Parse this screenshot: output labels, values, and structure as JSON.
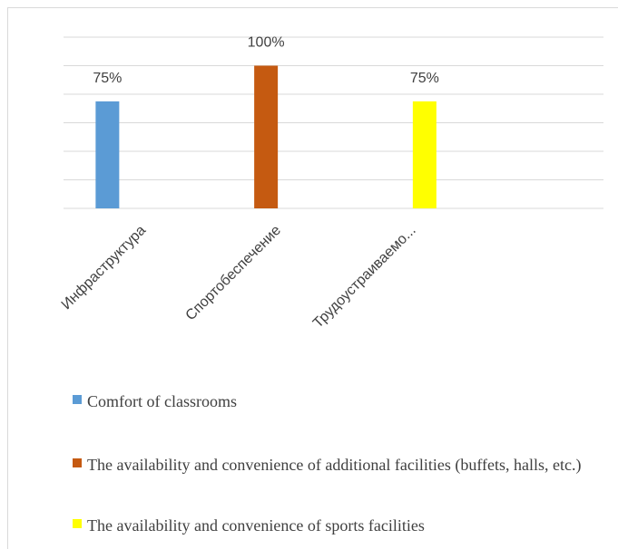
{
  "chart_data": {
    "type": "bar",
    "categories": [
      "Инфраструктура",
      "Спортобеспечение",
      "Трудоустраиваемо...",
      null
    ],
    "series": [
      {
        "name": "Comfort of classrooms",
        "color": "#5b9bd5",
        "values": [
          75,
          null,
          null,
          null
        ],
        "value_labels": [
          "75%",
          null,
          null,
          null
        ]
      },
      {
        "name": "The availability and convenience of additional facilities (buffets, halls, etc.)",
        "color": "#c55a11",
        "values": [
          null,
          100,
          null,
          null
        ],
        "value_labels": [
          null,
          "100%",
          null,
          null
        ]
      },
      {
        "name": "The availability and convenience of sports facilities",
        "color": "#ffff00",
        "values": [
          null,
          null,
          75,
          null
        ],
        "value_labels": [
          null,
          null,
          "75%",
          null
        ]
      }
    ],
    "ylim": [
      0,
      120
    ],
    "yticks": [
      0,
      20,
      40,
      60,
      80,
      100,
      120
    ],
    "grid": true,
    "legend": "bottom"
  }
}
